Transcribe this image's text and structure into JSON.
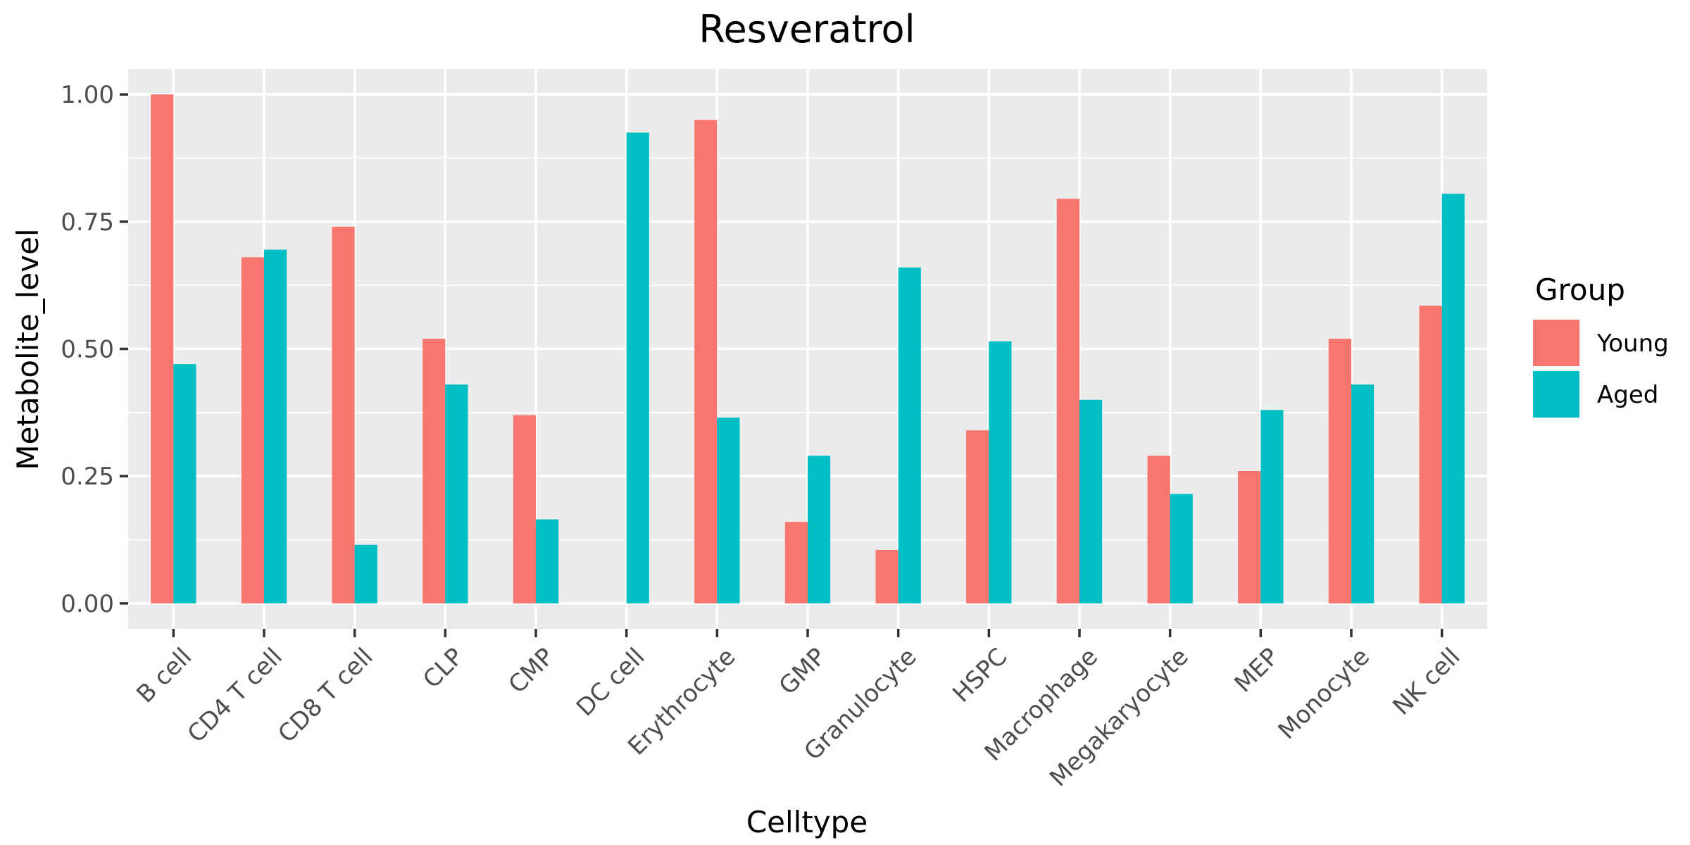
{
  "chart_data": {
    "type": "bar",
    "title": "Resveratrol",
    "xlabel": "Celltype",
    "ylabel": "Metabolite_level",
    "ylim": [
      -0.05,
      1.05
    ],
    "yticks": [
      0.0,
      0.25,
      0.5,
      0.75,
      1.0
    ],
    "ytick_labels": [
      "0.00",
      "0.25",
      "0.50",
      "0.75",
      "1.00"
    ],
    "grid": true,
    "legend": {
      "title": "Group",
      "position": "right"
    },
    "categories": [
      "B cell",
      "CD4 T cell",
      "CD8 T cell",
      "CLP",
      "CMP",
      "DC cell",
      "Erythrocyte",
      "GMP",
      "Granulocyte",
      "HSPC",
      "Macrophage",
      "Megakaryocyte",
      "MEP",
      "Monocyte",
      "NK cell"
    ],
    "series": [
      {
        "name": "Young",
        "color": "#F8766D",
        "values": [
          1.0,
          0.68,
          0.74,
          0.52,
          0.37,
          0.0,
          0.95,
          0.16,
          0.105,
          0.34,
          0.795,
          0.29,
          0.26,
          0.52,
          0.585
        ]
      },
      {
        "name": "Aged",
        "color": "#00BFC4",
        "values": [
          0.47,
          0.695,
          0.115,
          0.43,
          0.165,
          0.925,
          0.365,
          0.29,
          0.66,
          0.515,
          0.4,
          0.215,
          0.38,
          0.43,
          0.805
        ]
      }
    ],
    "panel_background": "#EBEBEB"
  }
}
